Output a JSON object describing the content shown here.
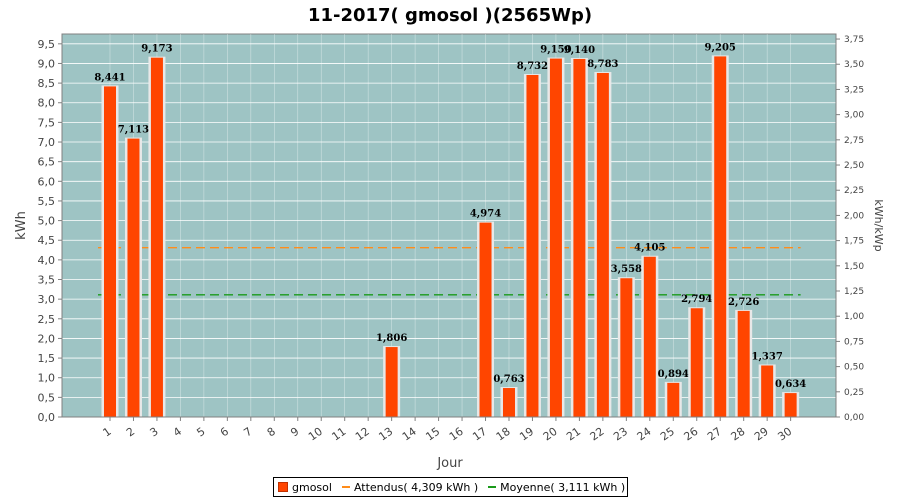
{
  "chart_data": {
    "type": "bar",
    "title": "11-2017( gmosol )(2565Wp)",
    "xlabel": "Jour",
    "ylabel": "kWh",
    "y2label": "kWh/kWp",
    "ylim": [
      0,
      9.75
    ],
    "y2lim": [
      0,
      3.8
    ],
    "yticks": [
      "0,0",
      "0,5",
      "1,0",
      "1,5",
      "2,0",
      "2,5",
      "3,0",
      "3,5",
      "4,0",
      "4,5",
      "5,0",
      "5,5",
      "6,0",
      "6,5",
      "7,0",
      "7,5",
      "8,0",
      "8,5",
      "9,0",
      "9,5"
    ],
    "y2ticks": [
      "0,00",
      "0,25",
      "0,50",
      "0,75",
      "1,00",
      "1,25",
      "1,50",
      "1,75",
      "2,00",
      "2,25",
      "2,50",
      "2,75",
      "3,00",
      "3,25",
      "3,50",
      "3,75"
    ],
    "categories": [
      "1",
      "2",
      "3",
      "4",
      "5",
      "6",
      "7",
      "8",
      "9",
      "10",
      "11",
      "12",
      "13",
      "14",
      "15",
      "16",
      "17",
      "18",
      "19",
      "20",
      "21",
      "22",
      "23",
      "24",
      "25",
      "26",
      "27",
      "28",
      "29",
      "30"
    ],
    "series": [
      {
        "name": "gmosol",
        "values": [
          8.441,
          7.113,
          9.173,
          0,
          0,
          0,
          0,
          0,
          0,
          0,
          0,
          0,
          1.806,
          0,
          0,
          0,
          4.974,
          0.763,
          8.732,
          9.15,
          9.14,
          8.783,
          3.558,
          4.105,
          0.894,
          2.794,
          9.205,
          2.726,
          1.337,
          0.634
        ],
        "labels": [
          "8,441",
          "7,113",
          "9,173",
          "",
          "",
          "",
          "",
          "",
          "",
          "",
          "",
          "",
          "1,806",
          "",
          "",
          "",
          "4,974",
          "0,763",
          "8,732",
          "9,150",
          "9,140",
          "8,783",
          "3,558",
          "4,105",
          "0,894",
          "2,794",
          "9,205",
          "2,726",
          "1,337",
          "0,634"
        ],
        "color": "#ff4500"
      }
    ],
    "reference_lines": [
      {
        "name": "Attendus",
        "value": 4.309,
        "color": "#ff8c1a",
        "from_index": 0,
        "note": "dashed"
      },
      {
        "name": "Moyenne",
        "value": 3.111,
        "color": "#1a9a1a",
        "from_index": 0,
        "note": "dashed"
      }
    ],
    "plot_background": "#9ec4c4",
    "grid": true,
    "legend_position": "bottom"
  },
  "legend": {
    "gmosol": "gmosol",
    "attendus": "Attendus( 4,309 kWh )",
    "moyenne": "Moyenne( 3,111 kWh )"
  }
}
